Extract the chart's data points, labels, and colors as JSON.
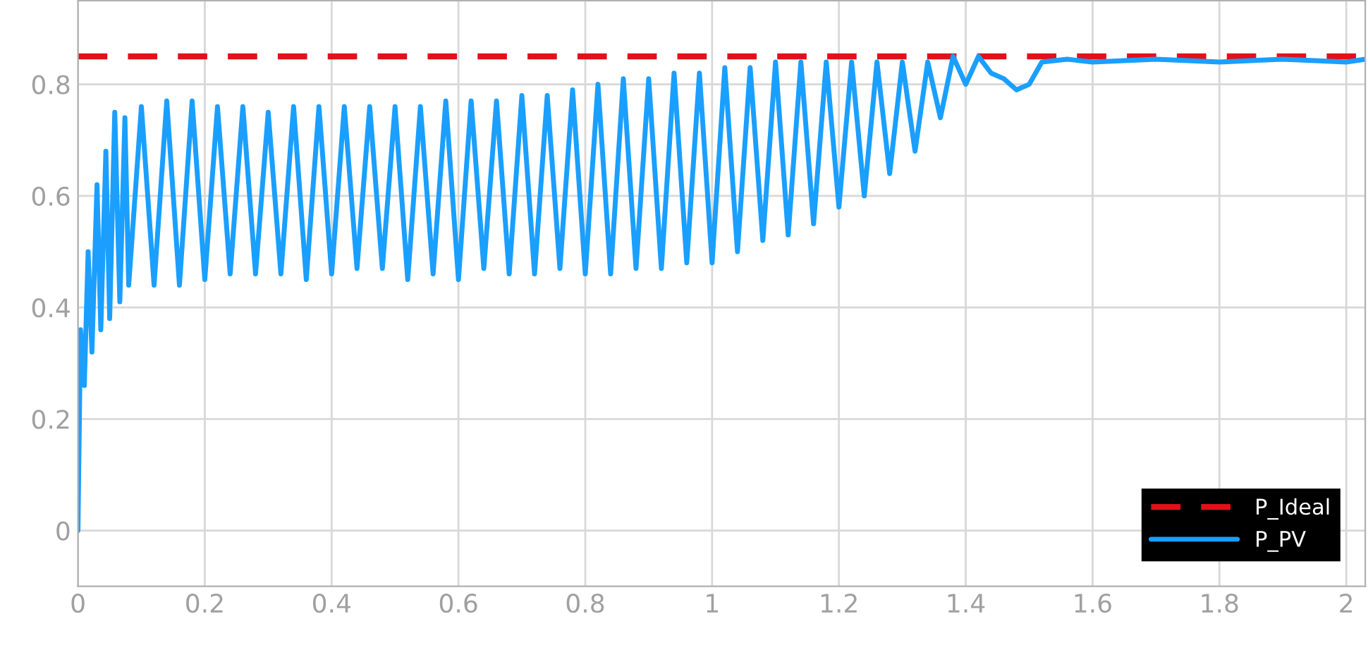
{
  "chart_data": {
    "type": "line",
    "xlim": [
      0,
      2.03
    ],
    "ylim": [
      -0.1,
      0.95
    ],
    "xticks": [
      0,
      0.2,
      0.4,
      0.6,
      0.8,
      1,
      1.2,
      1.4,
      1.6,
      1.8,
      2
    ],
    "yticks": [
      0,
      0.2,
      0.4,
      0.6,
      0.8
    ],
    "grid": true,
    "legend": "bottom right",
    "series": [
      {
        "name": "P_Ideal",
        "color": "#e3101a",
        "line_style": "dashed",
        "x": [
          0,
          2.03
        ],
        "values": [
          0.85,
          0.85
        ]
      },
      {
        "name": "P_PV",
        "color": "#1a9fff",
        "line_style": "solid",
        "x": [
          0,
          0.004,
          0.01,
          0.016,
          0.022,
          0.03,
          0.036,
          0.044,
          0.05,
          0.058,
          0.066,
          0.074,
          0.08,
          0.1,
          0.12,
          0.14,
          0.16,
          0.18,
          0.2,
          0.22,
          0.24,
          0.26,
          0.28,
          0.3,
          0.32,
          0.34,
          0.36,
          0.38,
          0.4,
          0.42,
          0.44,
          0.46,
          0.48,
          0.5,
          0.52,
          0.54,
          0.56,
          0.58,
          0.6,
          0.62,
          0.64,
          0.66,
          0.68,
          0.7,
          0.72,
          0.74,
          0.76,
          0.78,
          0.8,
          0.82,
          0.84,
          0.86,
          0.88,
          0.9,
          0.92,
          0.94,
          0.96,
          0.98,
          1.0,
          1.02,
          1.04,
          1.06,
          1.08,
          1.1,
          1.12,
          1.14,
          1.16,
          1.18,
          1.2,
          1.22,
          1.24,
          1.26,
          1.28,
          1.3,
          1.32,
          1.34,
          1.36,
          1.38,
          1.4,
          1.42,
          1.44,
          1.46,
          1.48,
          1.5,
          1.52,
          1.56,
          1.6,
          1.7,
          1.8,
          1.9,
          2.0,
          2.03
        ],
        "values": [
          0,
          0.36,
          0.26,
          0.5,
          0.32,
          0.62,
          0.36,
          0.68,
          0.38,
          0.75,
          0.41,
          0.74,
          0.44,
          0.76,
          0.44,
          0.77,
          0.44,
          0.77,
          0.45,
          0.76,
          0.46,
          0.76,
          0.46,
          0.75,
          0.46,
          0.76,
          0.45,
          0.76,
          0.46,
          0.76,
          0.47,
          0.76,
          0.47,
          0.76,
          0.45,
          0.76,
          0.46,
          0.77,
          0.45,
          0.77,
          0.47,
          0.77,
          0.46,
          0.78,
          0.46,
          0.78,
          0.47,
          0.79,
          0.46,
          0.8,
          0.46,
          0.81,
          0.47,
          0.81,
          0.47,
          0.82,
          0.48,
          0.82,
          0.48,
          0.83,
          0.5,
          0.83,
          0.52,
          0.84,
          0.53,
          0.84,
          0.55,
          0.84,
          0.58,
          0.84,
          0.6,
          0.84,
          0.64,
          0.84,
          0.68,
          0.84,
          0.74,
          0.85,
          0.8,
          0.85,
          0.82,
          0.81,
          0.79,
          0.8,
          0.84,
          0.845,
          0.84,
          0.845,
          0.84,
          0.845,
          0.84,
          0.845
        ]
      }
    ]
  }
}
